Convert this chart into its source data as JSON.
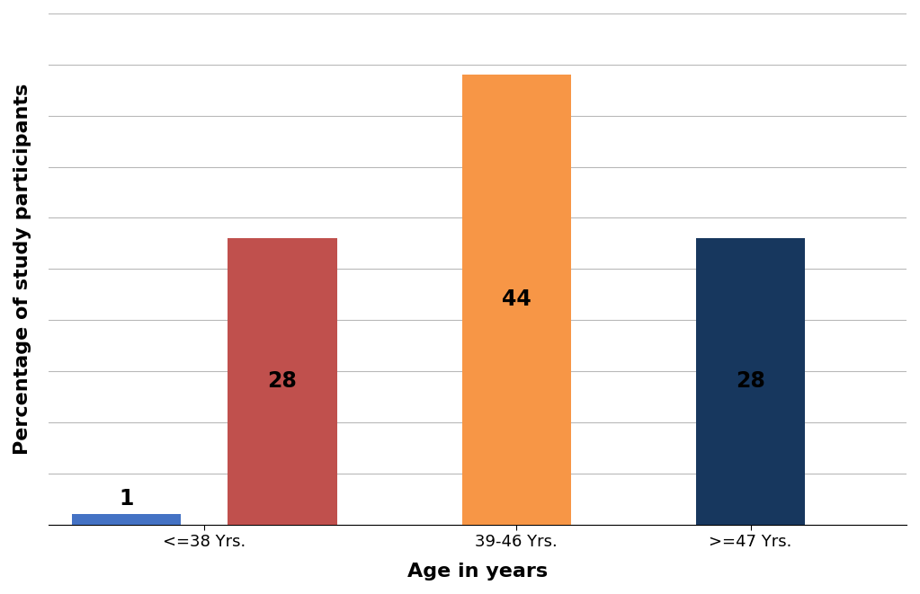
{
  "categories": [
    "<=38 Yrs.",
    "39-46 Yrs.",
    ">=47 Yrs."
  ],
  "bar_values": [
    1,
    28,
    44,
    28
  ],
  "bar_colors": [
    "#4472C4",
    "#C0504D",
    "#F79646",
    "#17375E"
  ],
  "bar_positions": [
    0.5,
    1.5,
    3.0,
    4.5
  ],
  "xtick_positions": [
    1.0,
    3.0,
    4.5
  ],
  "bar_labels": [
    "1",
    "28",
    "44",
    "28"
  ],
  "label_above": [
    true,
    false,
    false,
    false
  ],
  "ylabel": "Percentage of study participants",
  "xlabel": "Age in years",
  "ylim": [
    0,
    50
  ],
  "yticks": [
    0,
    5,
    10,
    15,
    20,
    25,
    30,
    35,
    40,
    45,
    50
  ],
  "background_color": "#ffffff",
  "grid_color": "#b8b8b8",
  "bar_width": 0.7,
  "label_fontsize": 17,
  "tick_fontsize": 13,
  "axis_label_fontsize": 16,
  "show_ytick_labels": false
}
